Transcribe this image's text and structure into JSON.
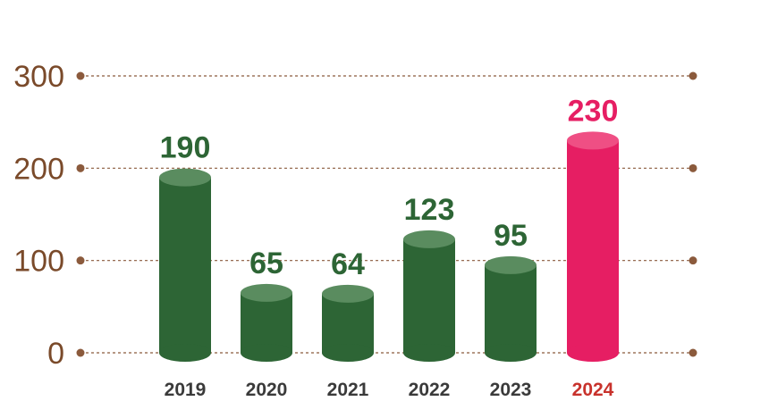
{
  "chart_data": {
    "type": "bar",
    "categories": [
      "2019",
      "2020",
      "2021",
      "2022",
      "2023",
      "2024"
    ],
    "values": [
      190,
      65,
      64,
      123,
      95,
      230
    ],
    "value_labels": [
      "190",
      "65",
      "64",
      "123",
      "95",
      "230"
    ],
    "y_tick_labels": [
      "0",
      "100",
      "200",
      "300"
    ],
    "y_ticks": [
      0,
      100,
      200,
      300
    ],
    "ylim": [
      0,
      300
    ],
    "grid": true,
    "legend": "none",
    "highlight_index": 5,
    "colors": {
      "bar": "#2d6535",
      "bar_top": "#5a8c5f",
      "highlight_bar": "#e61e63",
      "highlight_top": "#ef4f84",
      "value_label": "#2d6535",
      "highlight_value_label": "#e61e63",
      "category_label": "#3a3a3a",
      "highlight_category_label": "#c8322c",
      "axis_text": "#7a4a2a",
      "grid": "#8b5a3c"
    }
  }
}
